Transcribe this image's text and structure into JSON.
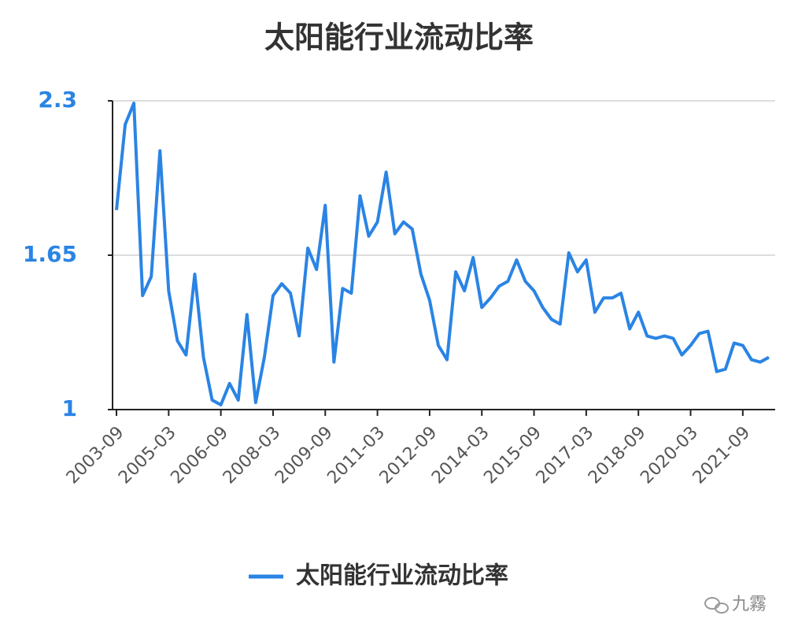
{
  "chart_data": {
    "type": "line",
    "title": "太阳能行业流动比率",
    "categories": [
      "2003-09",
      null,
      null,
      null,
      null,
      null,
      "2005-03",
      null,
      null,
      null,
      null,
      null,
      "2006-09",
      null,
      null,
      null,
      null,
      null,
      "2008-03",
      null,
      null,
      null,
      null,
      null,
      "2009-09",
      null,
      null,
      null,
      null,
      null,
      "2011-03",
      null,
      null,
      null,
      null,
      null,
      "2012-09",
      null,
      null,
      null,
      null,
      null,
      "2014-03",
      null,
      null,
      null,
      null,
      null,
      "2015-09",
      null,
      null,
      null,
      null,
      null,
      "2017-03",
      null,
      null,
      null,
      null,
      null,
      "2018-09",
      null,
      null,
      null,
      null,
      null,
      "2020-03",
      null,
      null,
      null,
      null,
      null,
      "2021-09",
      null,
      null,
      null
    ],
    "series": [
      {
        "name": "太阳能行业流动比率",
        "color": "#2a84e4",
        "values": [
          1.84,
          2.2,
          2.29,
          1.48,
          1.56,
          2.09,
          1.5,
          1.29,
          1.23,
          1.57,
          1.22,
          1.04,
          1.02,
          1.11,
          1.04,
          1.4,
          1.03,
          1.22,
          1.48,
          1.53,
          1.49,
          1.31,
          1.68,
          1.59,
          1.86,
          1.2,
          1.51,
          1.49,
          1.9,
          1.73,
          1.79,
          2.0,
          1.74,
          1.79,
          1.76,
          1.57,
          1.46,
          1.27,
          1.21,
          1.58,
          1.5,
          1.64,
          1.43,
          1.47,
          1.52,
          1.54,
          1.63,
          1.54,
          1.5,
          1.43,
          1.38,
          1.36,
          1.66,
          1.58,
          1.63,
          1.41,
          1.47,
          1.47,
          1.49,
          1.34,
          1.41,
          1.31,
          1.3,
          1.31,
          1.3,
          1.23,
          1.27,
          1.32,
          1.33,
          1.16,
          1.17,
          1.28,
          1.27,
          1.21,
          1.2,
          1.22
        ]
      }
    ],
    "ylim": [
      1,
      2.3
    ],
    "yticks": [
      1,
      1.65,
      2.3
    ],
    "grid": true,
    "watermark": "九霧"
  }
}
